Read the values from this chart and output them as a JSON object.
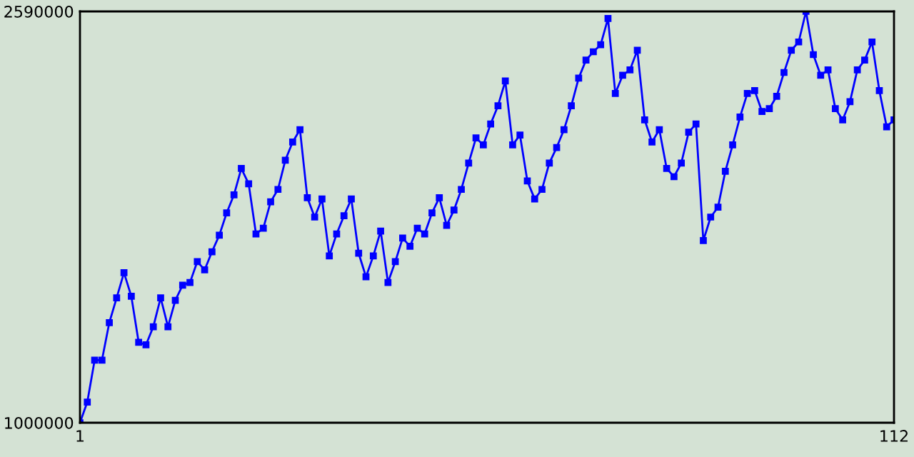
{
  "chart_data": {
    "type": "line",
    "x": [
      1,
      2,
      3,
      4,
      5,
      6,
      7,
      8,
      9,
      10,
      11,
      12,
      13,
      14,
      15,
      16,
      17,
      18,
      19,
      20,
      21,
      22,
      23,
      24,
      25,
      26,
      27,
      28,
      29,
      30,
      31,
      32,
      33,
      34,
      35,
      36,
      37,
      38,
      39,
      40,
      41,
      42,
      43,
      44,
      45,
      46,
      47,
      48,
      49,
      50,
      51,
      52,
      53,
      54,
      55,
      56,
      57,
      58,
      59,
      60,
      61,
      62,
      63,
      64,
      65,
      66,
      67,
      68,
      69,
      70,
      71,
      72,
      73,
      74,
      75,
      76,
      77,
      78,
      79,
      80,
      81,
      82,
      83,
      84,
      85,
      86,
      87,
      88,
      89,
      90,
      91,
      92,
      93,
      94,
      95,
      96,
      97,
      98,
      99,
      100,
      101,
      102,
      103,
      104,
      105,
      106,
      107,
      108,
      109,
      110,
      111,
      112
    ],
    "series": [
      {
        "color": "#0000ff",
        "values": [
          1000000,
          1080000,
          1242000,
          1242000,
          1387000,
          1483000,
          1580000,
          1489000,
          1311000,
          1301000,
          1371000,
          1483000,
          1371000,
          1473000,
          1532000,
          1542000,
          1623000,
          1591000,
          1661000,
          1725000,
          1811000,
          1881000,
          1983000,
          1924000,
          1730000,
          1752000,
          1854000,
          1902000,
          2015000,
          2085000,
          2133000,
          1870000,
          1795000,
          1865000,
          1645000,
          1730000,
          1800000,
          1865000,
          1655000,
          1564000,
          1645000,
          1741000,
          1542000,
          1623000,
          1714000,
          1682000,
          1752000,
          1730000,
          1811000,
          1870000,
          1763000,
          1822000,
          1902000,
          2004000,
          2101000,
          2074000,
          2155000,
          2225000,
          2321000,
          2074000,
          2112000,
          1935000,
          1865000,
          1902000,
          2004000,
          2064000,
          2133000,
          2225000,
          2332000,
          2402000,
          2434000,
          2461000,
          2563000,
          2273000,
          2343000,
          2364000,
          2440000,
          2171000,
          2085000,
          2133000,
          1983000,
          1951000,
          2004000,
          2123000,
          2155000,
          1704000,
          1795000,
          1833000,
          1972000,
          2074000,
          2182000,
          2273000,
          2284000,
          2203000,
          2214000,
          2262000,
          2354000,
          2440000,
          2472000,
          2590000,
          2423000,
          2343000,
          2364000,
          2214000,
          2171000,
          2241000,
          2364000,
          2402000,
          2472000,
          2284000,
          2144000,
          2171000
        ]
      }
    ],
    "xlim": [
      1,
      112
    ],
    "xticks": [
      1,
      112
    ],
    "ylim": [
      1000000,
      2590000
    ],
    "yticks": [
      1000000,
      2590000
    ],
    "marker": "square",
    "line_style": "solid"
  }
}
